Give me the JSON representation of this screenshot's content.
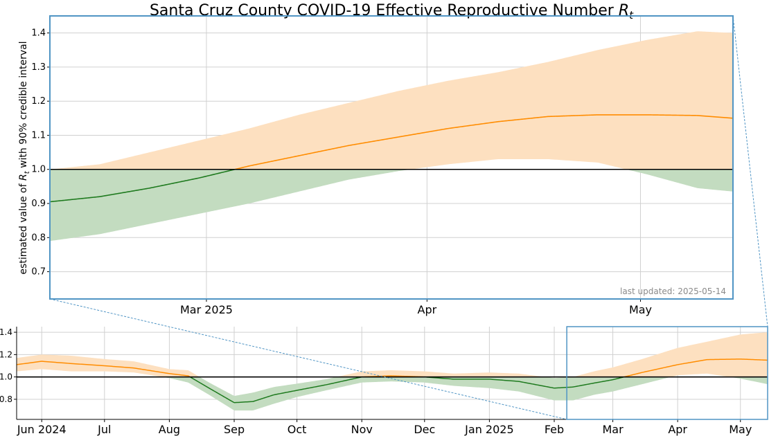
{
  "chart_data": {
    "title_text": "Santa Cruz County COVID-19 Effective Reproductive Number ",
    "title_symbol": "R",
    "title_subscript": "t",
    "ylabel_parts": [
      "estimated value of ",
      "R",
      "t",
      " with 90% credible interval"
    ],
    "footnote": "last updated: 2025-05-14",
    "colors": {
      "above_band": "#fde0c0",
      "below_band": "#c3dcc0",
      "above_line": "#ff8c00",
      "below_line": "#1e7a1e",
      "reference": "#000000",
      "zoom_box": "#4f94c4",
      "grid": "#d0d0d0"
    },
    "main": {
      "type": "area",
      "xlim": [
        "2025-02-07",
        "2025-05-14"
      ],
      "ylim": [
        0.62,
        1.45
      ],
      "reference_y": 1.0,
      "yticks": [
        0.7,
        0.8,
        0.9,
        1.0,
        1.1,
        1.2,
        1.3,
        1.4
      ],
      "ytick_labels": [
        "0.7",
        "0.8",
        "0.9",
        "1.0",
        "1.1",
        "1.2",
        "1.3",
        "1.4"
      ],
      "xticks": [
        "2025-03-01",
        "2025-04-01",
        "2025-05-01"
      ],
      "xtick_labels": [
        "Mar 2025",
        "Apr",
        "May"
      ],
      "series": {
        "x": [
          "2025-02-07",
          "2025-02-14",
          "2025-02-21",
          "2025-02-28",
          "2025-03-07",
          "2025-03-14",
          "2025-03-21",
          "2025-03-28",
          "2025-04-04",
          "2025-04-11",
          "2025-04-18",
          "2025-04-25",
          "2025-05-02",
          "2025-05-09",
          "2025-05-14"
        ],
        "mean": [
          0.905,
          0.92,
          0.945,
          0.975,
          1.01,
          1.04,
          1.07,
          1.095,
          1.12,
          1.14,
          1.155,
          1.16,
          1.16,
          1.158,
          1.15
        ],
        "lower": [
          0.79,
          0.81,
          0.84,
          0.87,
          0.9,
          0.935,
          0.97,
          0.995,
          1.015,
          1.03,
          1.03,
          1.02,
          0.985,
          0.945,
          0.935
        ],
        "upper": [
          1.0,
          1.015,
          1.05,
          1.085,
          1.12,
          1.16,
          1.195,
          1.23,
          1.26,
          1.285,
          1.315,
          1.35,
          1.38,
          1.405,
          1.4
        ]
      }
    },
    "overview": {
      "type": "area",
      "xlim": [
        "2024-05-20",
        "2025-05-14"
      ],
      "ylim": [
        0.62,
        1.45
      ],
      "reference_y": 1.0,
      "yticks": [
        0.8,
        1.0,
        1.2,
        1.4
      ],
      "ytick_labels": [
        "0.8",
        "1.0",
        "1.2",
        "1.4"
      ],
      "xticks": [
        "2024-06-01",
        "2024-07-01",
        "2024-08-01",
        "2024-09-01",
        "2024-10-01",
        "2024-11-01",
        "2024-12-01",
        "2025-01-01",
        "2025-02-01",
        "2025-03-01",
        "2025-04-01",
        "2025-05-01"
      ],
      "xtick_labels": [
        "Jun 2024",
        "Jul",
        "Aug",
        "Sep",
        "Oct",
        "Nov",
        "Dec",
        "Jan 2025",
        "Feb",
        "Mar",
        "Apr",
        "May"
      ],
      "zoom_range": [
        "2025-02-07",
        "2025-05-14"
      ],
      "series": {
        "x": [
          "2024-05-20",
          "2024-06-01",
          "2024-06-15",
          "2024-07-01",
          "2024-07-15",
          "2024-08-01",
          "2024-08-10",
          "2024-08-20",
          "2024-09-01",
          "2024-09-10",
          "2024-09-20",
          "2024-10-01",
          "2024-10-15",
          "2024-11-01",
          "2024-11-15",
          "2024-12-01",
          "2024-12-15",
          "2025-01-01",
          "2025-01-15",
          "2025-02-01",
          "2025-02-10",
          "2025-02-20",
          "2025-03-01",
          "2025-03-15",
          "2025-04-01",
          "2025-04-15",
          "2025-05-01",
          "2025-05-14"
        ],
        "mean": [
          1.11,
          1.14,
          1.12,
          1.1,
          1.08,
          1.03,
          1.01,
          0.9,
          0.77,
          0.78,
          0.84,
          0.88,
          0.93,
          1.0,
          1.01,
          1.0,
          0.98,
          0.98,
          0.96,
          0.9,
          0.91,
          0.945,
          0.975,
          1.04,
          1.11,
          1.155,
          1.16,
          1.15
        ],
        "lower": [
          1.05,
          1.07,
          1.05,
          1.05,
          1.04,
          0.99,
          0.95,
          0.84,
          0.7,
          0.7,
          0.76,
          0.82,
          0.88,
          0.95,
          0.96,
          0.95,
          0.92,
          0.9,
          0.87,
          0.79,
          0.79,
          0.84,
          0.87,
          0.935,
          1.015,
          1.03,
          0.985,
          0.935
        ],
        "upper": [
          1.17,
          1.2,
          1.19,
          1.16,
          1.14,
          1.07,
          1.06,
          0.95,
          0.83,
          0.86,
          0.91,
          0.94,
          0.98,
          1.05,
          1.06,
          1.05,
          1.03,
          1.04,
          1.03,
          0.99,
          1.0,
          1.05,
          1.085,
          1.16,
          1.26,
          1.315,
          1.38,
          1.4
        ]
      }
    }
  }
}
